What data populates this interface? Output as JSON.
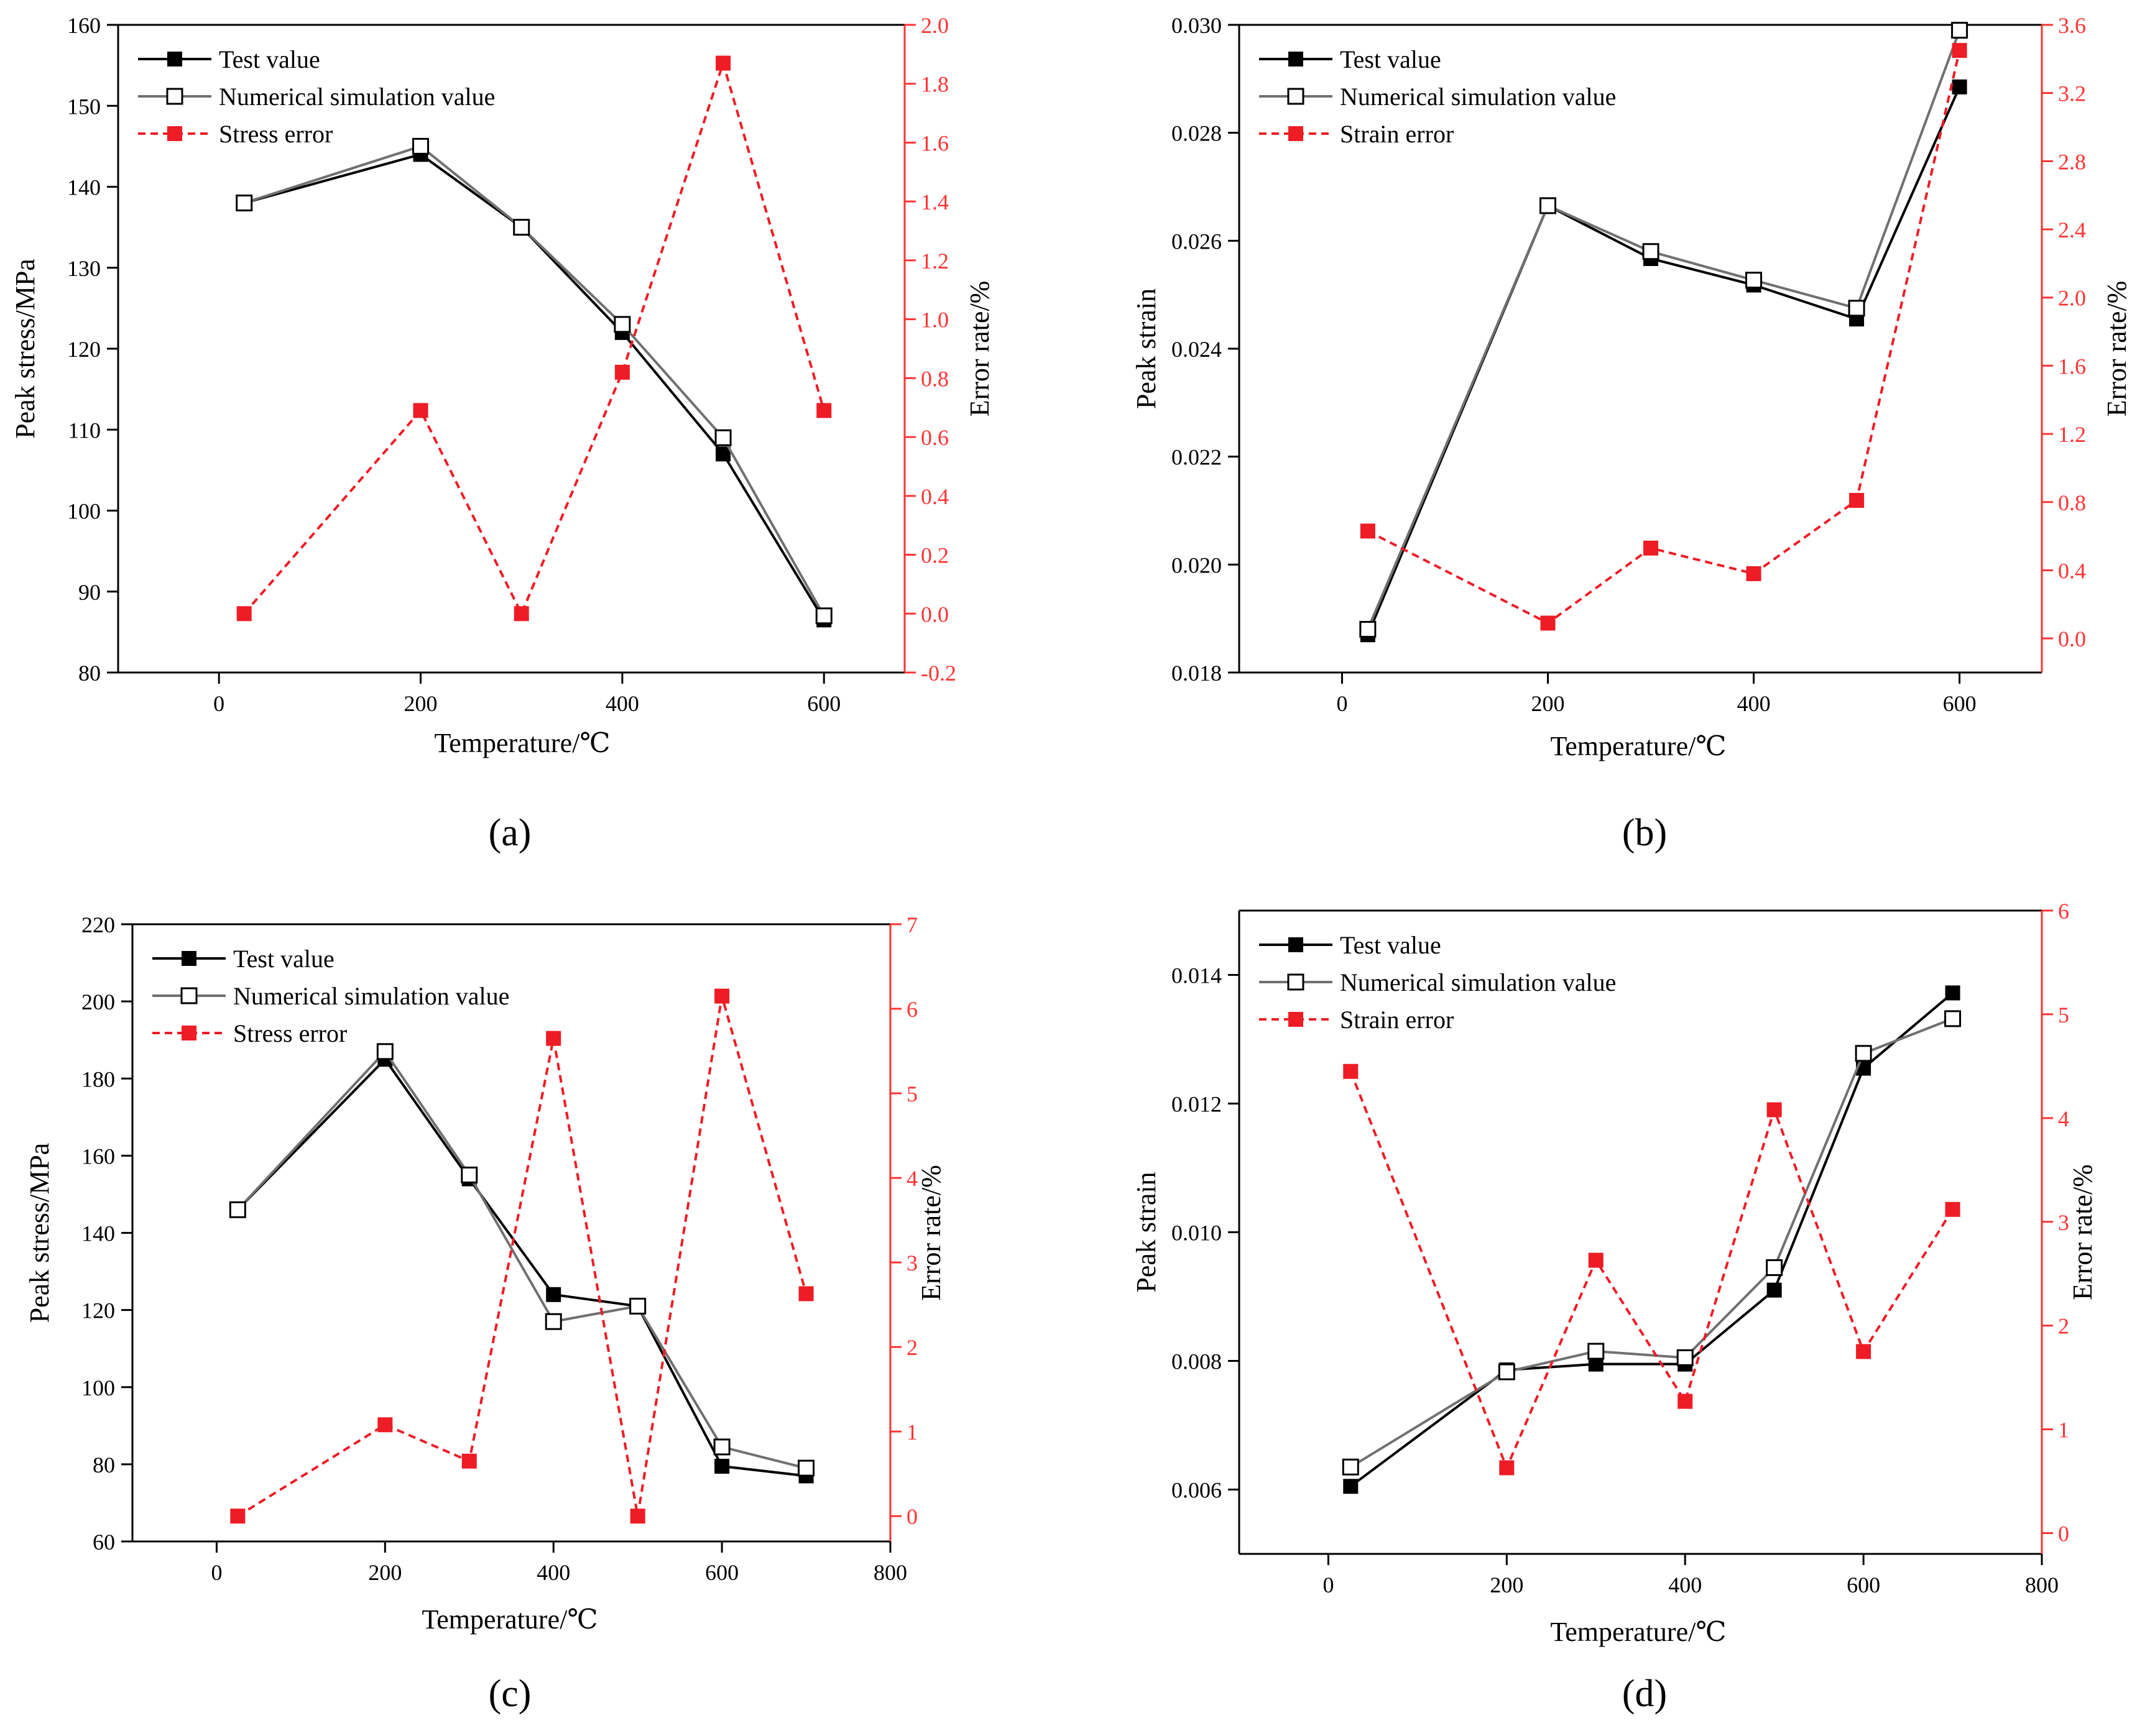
{
  "chart_data": [
    {
      "type": "line",
      "panel_label": "(a)",
      "xlabel": "Temperature/℃",
      "ylabel": "Peak stress/MPa",
      "y2label": "Error rate/%",
      "xlim": [
        -100,
        680
      ],
      "xticks": [
        0,
        200,
        400,
        600
      ],
      "ylim": [
        80,
        160
      ],
      "yticks": [
        80,
        90,
        100,
        110,
        120,
        130,
        140,
        150,
        160
      ],
      "y2lim": [
        -0.2,
        2.0
      ],
      "y2ticks": [
        -0.2,
        0.0,
        0.2,
        0.4,
        0.6,
        0.8,
        1.0,
        1.2,
        1.4,
        1.6,
        1.8,
        2.0
      ],
      "y2decimals": 1,
      "legend_position": "top-left",
      "series": [
        {
          "name": "Test value",
          "axis": "left",
          "style": "test",
          "x": [
            25,
            200,
            300,
            400,
            500,
            600
          ],
          "values": [
            138,
            144,
            135,
            122,
            107,
            86.5
          ]
        },
        {
          "name": "Numerical simulation value",
          "axis": "left",
          "style": "sim",
          "x": [
            25,
            200,
            300,
            400,
            500,
            600
          ],
          "values": [
            138,
            145,
            135,
            123,
            109,
            87
          ]
        },
        {
          "name": "Stress error",
          "axis": "right",
          "style": "error",
          "x": [
            25,
            200,
            300,
            400,
            500,
            600
          ],
          "values": [
            0.0,
            0.69,
            0.0,
            0.82,
            1.87,
            0.69
          ]
        }
      ]
    },
    {
      "type": "line",
      "panel_label": "(b)",
      "xlabel": "Temperature/℃",
      "ylabel": "Peak strain",
      "y2label": "Error rate/%",
      "xlim": [
        -100,
        680
      ],
      "xticks": [
        0,
        200,
        400,
        600
      ],
      "ylim": [
        0.018,
        0.03
      ],
      "yticks": [
        0.018,
        0.02,
        0.022,
        0.024,
        0.026,
        0.028,
        0.03
      ],
      "y1decimals": 3,
      "y2lim": [
        -0.2,
        3.6
      ],
      "y2ticks": [
        0.0,
        0.4,
        0.8,
        1.2,
        1.6,
        2.0,
        2.4,
        2.8,
        3.2,
        3.6
      ],
      "y2decimals": 1,
      "legend_position": "top-left",
      "series": [
        {
          "name": "Test value",
          "axis": "left",
          "style": "test",
          "x": [
            25,
            200,
            300,
            400,
            500,
            600
          ],
          "values": [
            0.0187,
            0.02665,
            0.02567,
            0.02518,
            0.02455,
            0.02885
          ]
        },
        {
          "name": "Numerical simulation value",
          "axis": "left",
          "style": "sim",
          "x": [
            25,
            200,
            300,
            400,
            500,
            600
          ],
          "values": [
            0.0188,
            0.02665,
            0.0258,
            0.02527,
            0.02475,
            0.0299
          ]
        },
        {
          "name": "Strain error",
          "axis": "right",
          "style": "error",
          "x": [
            25,
            200,
            300,
            400,
            500,
            600
          ],
          "values": [
            0.63,
            0.09,
            0.53,
            0.38,
            0.81,
            3.45
          ]
        }
      ]
    },
    {
      "type": "line",
      "panel_label": "(c)",
      "xlabel": "Temperature/℃",
      "ylabel": "Peak stress/MPa",
      "y2label": "Error rate/%",
      "xlim": [
        -100,
        800
      ],
      "xticks": [
        0,
        200,
        400,
        600,
        800
      ],
      "ylim": [
        60,
        220
      ],
      "yticks": [
        60,
        80,
        100,
        120,
        140,
        160,
        180,
        200,
        220
      ],
      "y2lim": [
        -0.3,
        7
      ],
      "y2ticks": [
        0,
        1,
        2,
        3,
        4,
        5,
        6,
        7
      ],
      "y2decimals": 0,
      "legend_position": "top-left",
      "series": [
        {
          "name": "Test value",
          "axis": "left",
          "style": "test",
          "x": [
            25,
            200,
            300,
            400,
            500,
            600,
            700
          ],
          "values": [
            146,
            185,
            154,
            124,
            121,
            79.5,
            77
          ]
        },
        {
          "name": "Numerical simulation value",
          "axis": "left",
          "style": "sim",
          "x": [
            25,
            200,
            300,
            400,
            500,
            600,
            700
          ],
          "values": [
            146,
            187,
            155,
            117,
            121,
            84.5,
            79
          ]
        },
        {
          "name": "Stress error",
          "axis": "right",
          "style": "error",
          "x": [
            25,
            200,
            300,
            400,
            500,
            600,
            700
          ],
          "values": [
            0.0,
            1.08,
            0.65,
            5.65,
            0.0,
            6.15,
            2.63
          ]
        }
      ]
    },
    {
      "type": "line",
      "panel_label": "(d)",
      "xlabel": "Temperature/℃",
      "ylabel": "Peak strain",
      "y2label": "Error rate/%",
      "xlim": [
        -100,
        800
      ],
      "xticks": [
        0,
        200,
        400,
        600,
        800
      ],
      "ylim": [
        0.005,
        0.015
      ],
      "yticks": [
        0.006,
        0.008,
        0.01,
        0.012,
        0.014
      ],
      "y1decimals": 3,
      "y2lim": [
        -0.2,
        6
      ],
      "y2ticks": [
        0,
        1,
        2,
        3,
        4,
        5,
        6
      ],
      "y2decimals": 0,
      "legend_position": "top-left",
      "series": [
        {
          "name": "Test value",
          "axis": "left",
          "style": "test",
          "x": [
            25,
            200,
            300,
            400,
            500,
            600,
            700
          ],
          "values": [
            0.00605,
            0.00786,
            0.00795,
            0.00795,
            0.0091,
            0.01255,
            0.01372
          ]
        },
        {
          "name": "Numerical simulation value",
          "axis": "left",
          "style": "sim",
          "x": [
            25,
            200,
            300,
            400,
            500,
            600,
            700
          ],
          "values": [
            0.00635,
            0.00783,
            0.00815,
            0.00805,
            0.00945,
            0.01278,
            0.01332
          ]
        },
        {
          "name": "Strain error",
          "axis": "right",
          "style": "error",
          "x": [
            25,
            200,
            300,
            400,
            500,
            600,
            700
          ],
          "values": [
            4.45,
            0.63,
            2.63,
            1.27,
            4.08,
            1.75,
            3.12
          ]
        }
      ]
    }
  ],
  "colors": {
    "test_line": "#000000",
    "sim_line": "#707070",
    "error": "#ee1c25",
    "error_axis": "#ff3333",
    "axis": "#000000"
  }
}
